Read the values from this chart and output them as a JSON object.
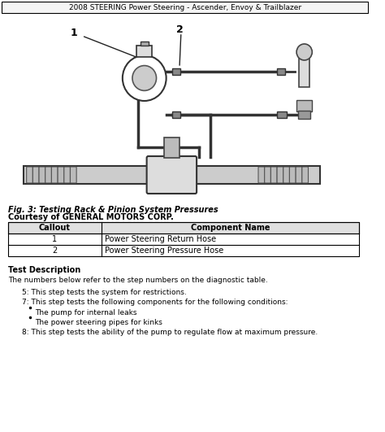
{
  "header_text": "2008 STEERING Power Steering - Ascender, Envoy & Trailblazer",
  "fig_caption_line1": "Fig. 3: Testing Rack & Pinion System Pressures",
  "fig_caption_line2": "Courtesy of GENERAL MOTORS CORP.",
  "table_headers": [
    "Callout",
    "Component Name"
  ],
  "table_rows": [
    [
      "1",
      "Power Steering Return Hose"
    ],
    [
      "2",
      "Power Steering Pressure Hose"
    ]
  ],
  "test_desc_title": "Test Description",
  "test_desc_body": "The numbers below refer to the step numbers on the diagnostic table.",
  "numbered_items": [
    "5: This step tests the system for restrictions.",
    "7: This step tests the following components for the following conditions:"
  ],
  "bullet_items": [
    "The pump for internal leaks",
    "The power steering pipes for kinks"
  ],
  "item_8": "8: This step tests the ability of the pump to regulate flow at maximum pressure.",
  "bg_color": "#ffffff",
  "border_color": "#000000",
  "text_color": "#000000"
}
